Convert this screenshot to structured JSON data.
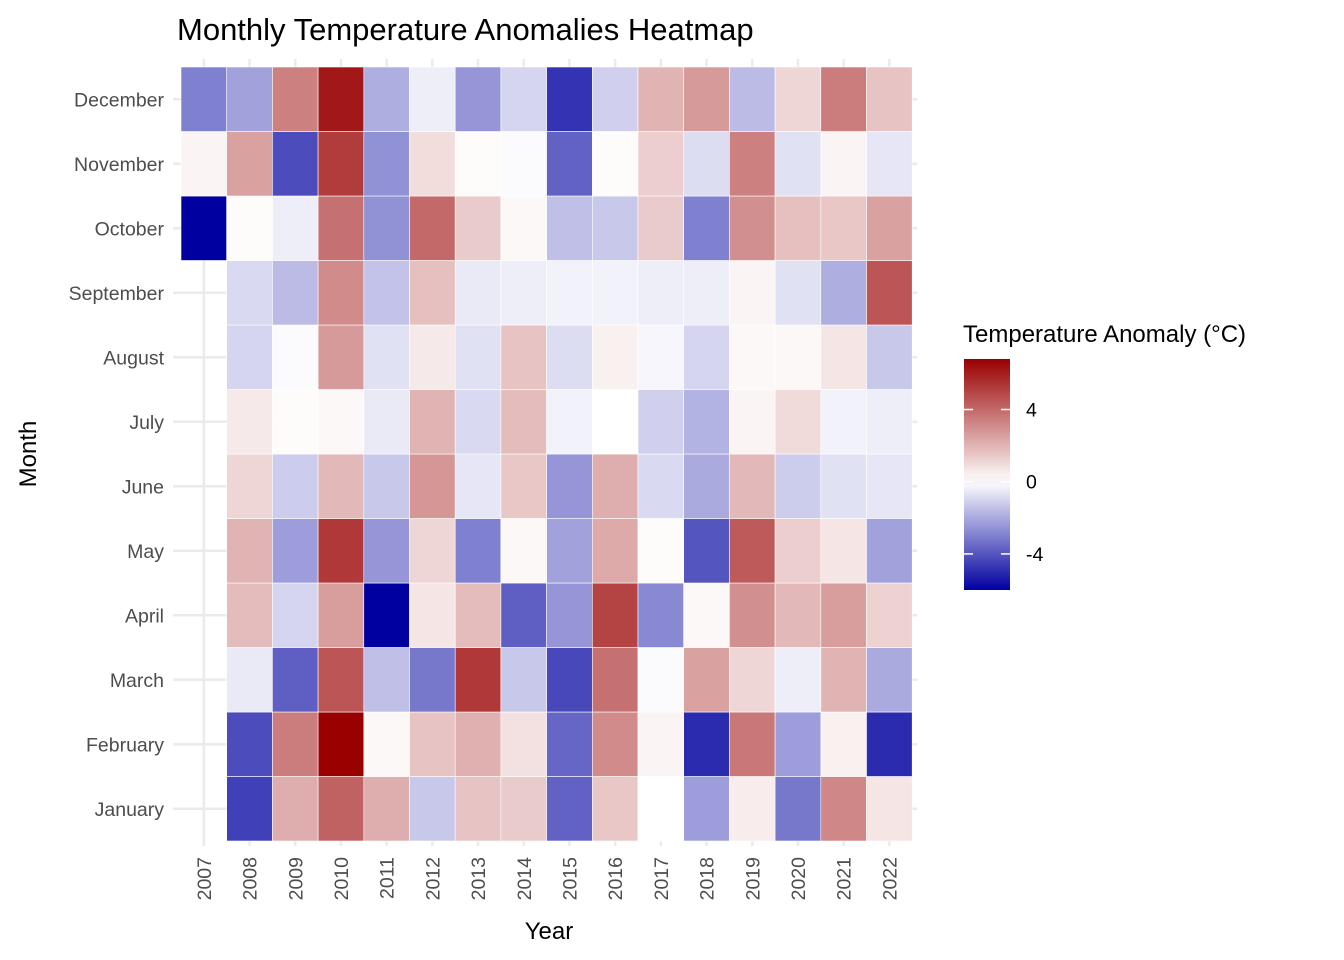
{
  "chart_data": {
    "type": "heatmap",
    "title": "Monthly Temperature Anomalies Heatmap",
    "xlabel": "Year",
    "ylabel": "Month",
    "x": [
      "2007",
      "2008",
      "2009",
      "2010",
      "2011",
      "2012",
      "2013",
      "2014",
      "2015",
      "2016",
      "2017",
      "2018",
      "2019",
      "2020",
      "2021",
      "2022"
    ],
    "y": [
      "January",
      "February",
      "March",
      "April",
      "May",
      "June",
      "July",
      "August",
      "September",
      "October",
      "November",
      "December"
    ],
    "values": {
      "January": [
        null,
        -4.5,
        2.2,
        4.2,
        2.2,
        -1.3,
        1.6,
        1.4,
        -3.7,
        1.5,
        0.0,
        -2.3,
        0.5,
        -3.2,
        3.2,
        0.7
      ],
      "February": [
        null,
        -4.2,
        3.5,
        6.8,
        0.2,
        1.6,
        2.1,
        0.8,
        -3.6,
        3.1,
        0.3,
        -5.0,
        3.6,
        -2.3,
        0.4,
        -5.0
      ],
      "March": [
        null,
        -0.5,
        -3.8,
        4.5,
        -1.5,
        -3.2,
        5.3,
        -1.3,
        -4.3,
        3.8,
        -0.1,
        2.5,
        1.1,
        -0.4,
        2.0,
        -2.0
      ],
      "April": [
        null,
        1.8,
        -1.0,
        2.6,
        -6.0,
        0.7,
        1.8,
        -3.8,
        -2.5,
        5.0,
        -2.8,
        0.2,
        3.0,
        1.9,
        2.6,
        1.2
      ],
      "May": [
        null,
        2.0,
        -2.3,
        5.3,
        -2.5,
        1.1,
        -3.0,
        0.2,
        -2.2,
        2.3,
        0.1,
        -4.0,
        4.4,
        1.3,
        0.7,
        -2.2
      ],
      "June": [
        null,
        1.1,
        -1.2,
        1.9,
        -1.3,
        2.8,
        -0.6,
        1.5,
        -2.5,
        2.2,
        -0.9,
        -2.0,
        1.9,
        -1.2,
        -0.7,
        -0.6
      ],
      "July": [
        null,
        0.6,
        0.1,
        0.2,
        -0.5,
        2.0,
        -0.9,
        1.8,
        -0.3,
        0.0,
        -1.1,
        -1.8,
        0.3,
        1.0,
        -0.3,
        -0.4
      ],
      "August": [
        null,
        -1.0,
        -0.1,
        2.7,
        -0.7,
        0.6,
        -0.7,
        1.6,
        -0.8,
        0.4,
        -0.2,
        -1.0,
        0.2,
        0.2,
        0.7,
        -1.3
      ],
      "September": [
        null,
        -0.9,
        -1.6,
        3.1,
        -1.4,
        1.7,
        -0.5,
        -0.4,
        -0.3,
        -0.3,
        -0.4,
        -0.4,
        0.3,
        -0.7,
        -1.9,
        4.5
      ],
      "October": [
        -6.0,
        0.1,
        -0.4,
        3.8,
        -2.6,
        4.0,
        1.4,
        0.2,
        -1.5,
        -1.3,
        1.4,
        -3.0,
        3.0,
        1.7,
        1.5,
        2.5
      ],
      "November": [
        0.3,
        2.5,
        -4.2,
        5.2,
        -2.6,
        0.9,
        0.1,
        -0.1,
        -3.7,
        0.1,
        1.3,
        -0.8,
        3.4,
        -0.7,
        0.3,
        -0.6
      ],
      "December": [
        -3.0,
        -2.2,
        3.4,
        6.2,
        -1.9,
        -0.4,
        -2.5,
        -1.0,
        -4.8,
        -1.1,
        2.0,
        2.7,
        -1.6,
        1.1,
        3.5,
        1.6
      ]
    },
    "legend": {
      "title": "Temperature Anomaly (°C)",
      "placement": "right",
      "ticks": [
        4,
        0,
        -4
      ],
      "tick_labels": [
        "4",
        "0",
        "-4"
      ],
      "min": -6.0,
      "max": 6.8
    },
    "colors": {
      "low": "#0000a0",
      "mid": "#ffffff",
      "high": "#990000"
    },
    "grid": true
  }
}
